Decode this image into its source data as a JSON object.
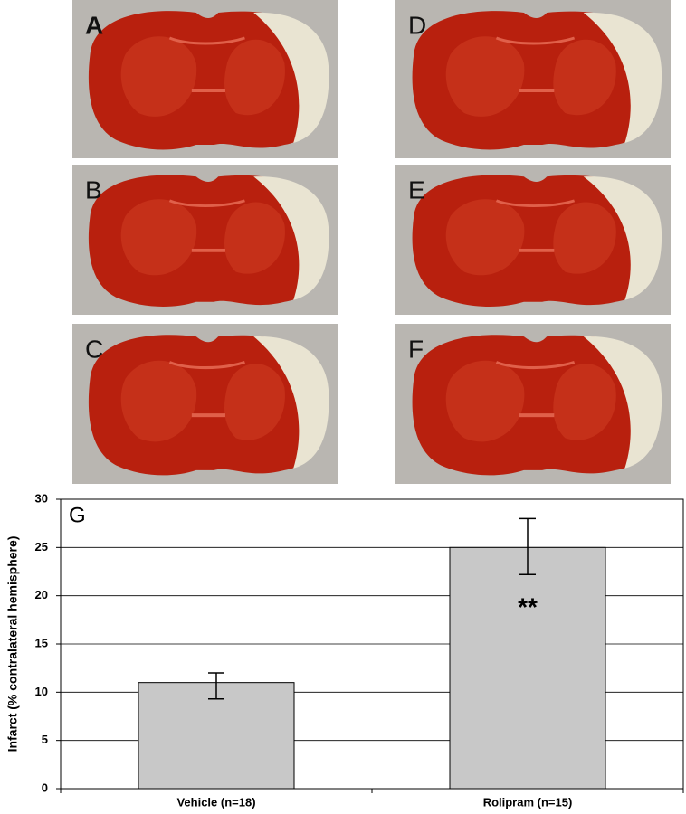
{
  "panels": {
    "labels": [
      "A",
      "B",
      "C",
      "D",
      "E",
      "F"
    ]
  },
  "chart_data": {
    "type": "bar",
    "panel_label": "G",
    "y_label": "Infarct (% contralateral hemisphere)",
    "categories": [
      "Vehicle (n=18)",
      "Rolipram (n=15)"
    ],
    "values": [
      11,
      25
    ],
    "error_minus": [
      1.7,
      2.8
    ],
    "error_plus": [
      1.0,
      3.0
    ],
    "color": "#c8c8c8",
    "annotation": "**",
    "ylim": [
      0,
      30
    ],
    "yticks": [
      0,
      5,
      10,
      15,
      20,
      25,
      30
    ],
    "grid": true
  }
}
